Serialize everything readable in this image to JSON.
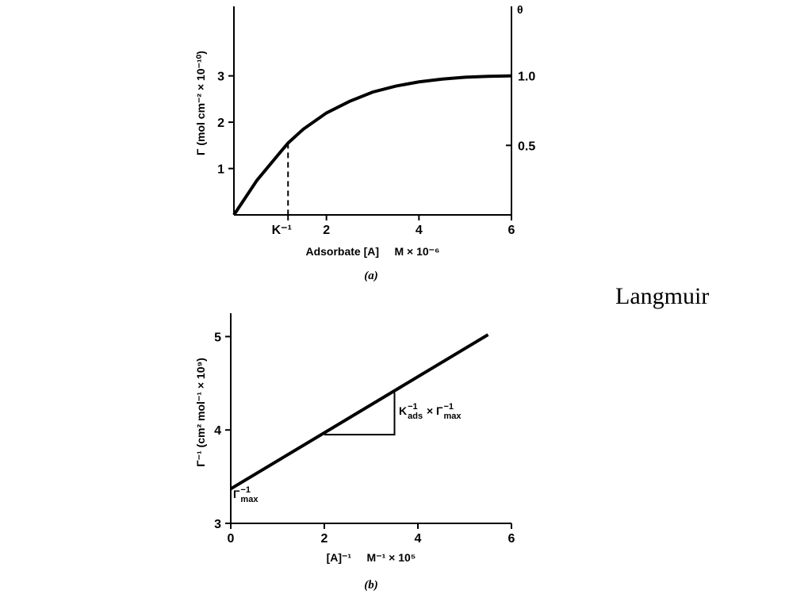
{
  "slide": {
    "title": "Langmuir"
  },
  "chart_data": [
    {
      "type": "line",
      "x_label": "Adsorbate [A]     M × 10⁻⁶",
      "y_label": "Γ  (mol cm⁻² × 10⁻¹⁰)",
      "y2_label": "θ",
      "caption": "(a)",
      "x": [
        0,
        0.5,
        1,
        1.17,
        1.5,
        2,
        2.5,
        3,
        3.5,
        4,
        4.5,
        5,
        5.5,
        6
      ],
      "series": [
        {
          "color": "#000000",
          "values": [
            0,
            0.75,
            1.35,
            1.55,
            1.85,
            2.2,
            2.45,
            2.65,
            2.78,
            2.87,
            2.93,
            2.97,
            2.99,
            3.0
          ]
        }
      ],
      "xlim": [
        0,
        6
      ],
      "xticks": [
        {
          "value": 1.17,
          "label": "K⁻¹"
        },
        2,
        4,
        6
      ],
      "ylim": [
        0,
        4.5
      ],
      "yticks": [
        1,
        2,
        3
      ],
      "y2lim": [
        0,
        1.5
      ],
      "y2ticks": [
        0.5,
        {
          "value": 1,
          "label": "1.0"
        }
      ]
    },
    {
      "type": "line",
      "x_label": "[A]⁻¹     M⁻¹ × 10⁵",
      "y_label": "Γ⁻¹ (cm² mol⁻¹ × 10⁹)",
      "caption": "(b)",
      "x": [
        0,
        5.5
      ],
      "series": [
        {
          "color": "#000000",
          "values": [
            3.37,
            5.02
          ]
        }
      ],
      "xlim": [
        0,
        6
      ],
      "xticks": [
        0,
        2,
        4,
        6
      ],
      "ylim": [
        3,
        5.25
      ],
      "yticks": [
        3,
        4,
        5
      ],
      "slope_triangle": {
        "x": [
          2,
          3.5,
          3.5
        ],
        "y": [
          3.95,
          3.95,
          4.4
        ]
      },
      "annotations": [
        {
          "parts": [
            {
              "base": "K",
              "sub": "ads",
              "sup": "−1"
            },
            {
              "base": " × Γ",
              "sub": "max",
              "sup": "−1"
            }
          ]
        },
        {
          "parts": [
            {
              "base": "Γ",
              "sub": "max",
              "sup": "−1"
            }
          ]
        }
      ]
    }
  ]
}
